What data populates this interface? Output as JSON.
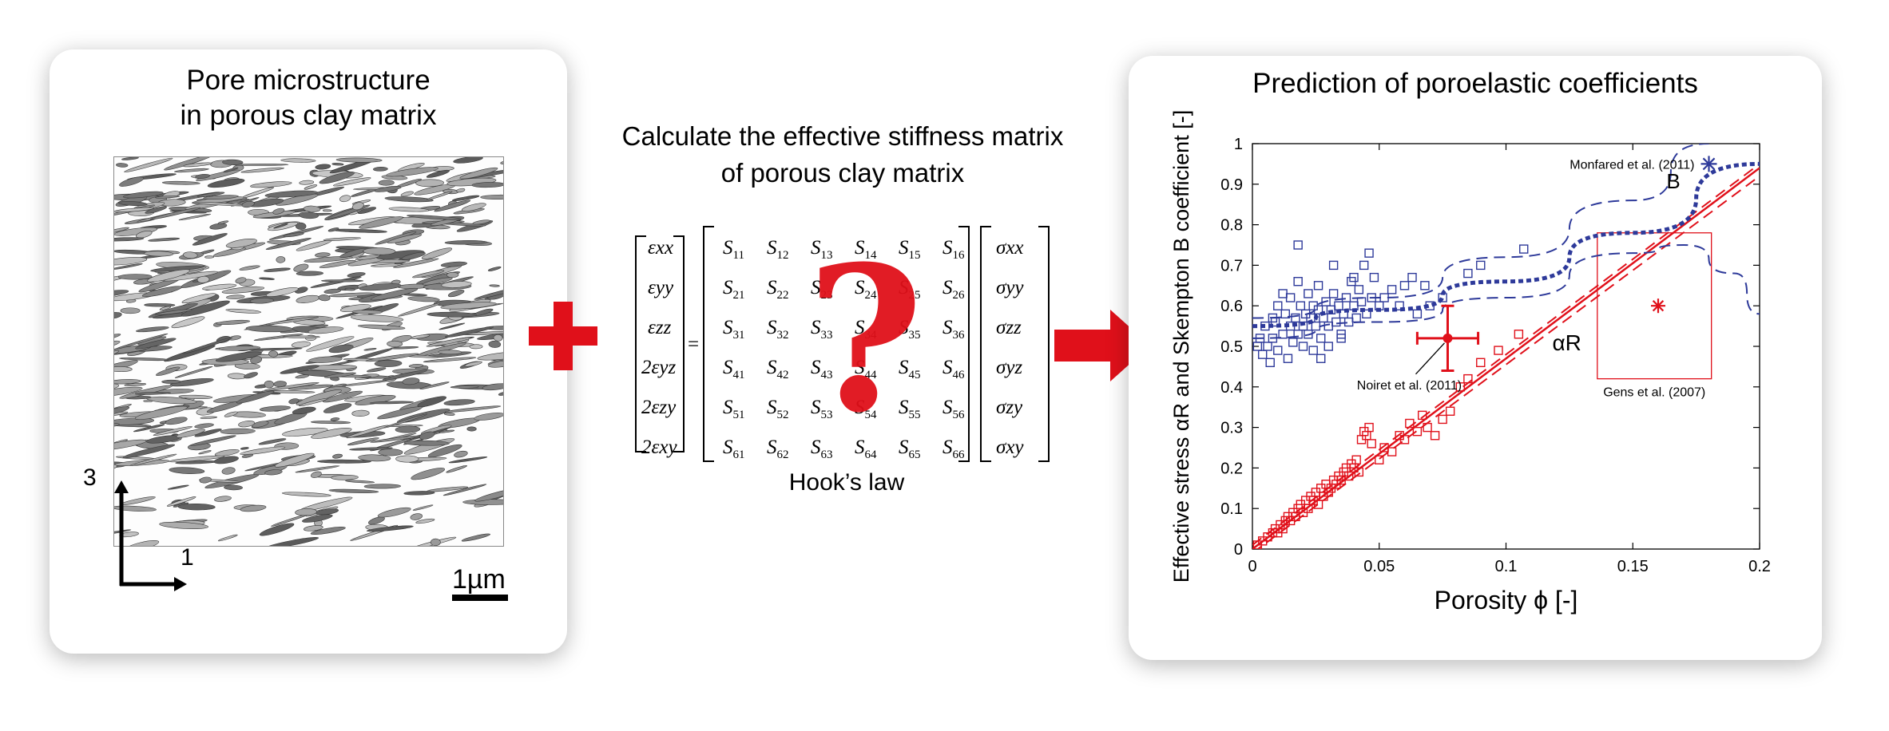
{
  "left_panel": {
    "title_line1": "Pore microstructure",
    "title_line2": "in porous clay matrix",
    "axis_vertical": "3",
    "axis_horizontal": "1",
    "scale_label": "1µm"
  },
  "middle": {
    "title_line1": "Calculate the effective stiffness matrix",
    "title_line2": "of porous clay matrix",
    "strain_labels": [
      "εxx",
      "εyy",
      "εzz",
      "2εyz",
      "2εzy",
      "2εxy"
    ],
    "stress_labels": [
      "σxx",
      "σyy",
      "σzz",
      "σyz",
      "σzy",
      "σxy"
    ],
    "equals": "=",
    "question": "?",
    "caption": "Hook’s law"
  },
  "right_panel": {
    "title": "Prediction of poroelastic coefficients",
    "annotations": {
      "monfared": "Monfared et al. (2011)",
      "noiret": "Noiret et al. (2011)",
      "gens": "Gens et al. (2007)",
      "curve_b": "B",
      "curve_alpha": "αR"
    }
  },
  "colors": {
    "red": "#e0101a",
    "blue": "#2e3a9a"
  },
  "chart_data": {
    "type": "scatter",
    "xlabel": "Porosity ϕ [-]",
    "ylabel": "Effective stress αR and Skempton B coefficient [-]",
    "xlim": [
      0,
      0.2
    ],
    "ylim": [
      0,
      1
    ],
    "xticks": [
      "0",
      "0.05",
      "0.1",
      "0.15",
      "0.2"
    ],
    "yticks": [
      "0",
      "0.1",
      "0.2",
      "0.3",
      "0.4",
      "0.5",
      "0.6",
      "0.7",
      "0.8",
      "0.9",
      "1"
    ],
    "grid": false,
    "series": [
      {
        "name": "B",
        "marker": "square",
        "color": "#2e3a9a",
        "points": [
          [
            0.002,
            0.5
          ],
          [
            0.003,
            0.52
          ],
          [
            0.004,
            0.48
          ],
          [
            0.005,
            0.55
          ],
          [
            0.006,
            0.5
          ],
          [
            0.007,
            0.46
          ],
          [
            0.008,
            0.52
          ],
          [
            0.009,
            0.56
          ],
          [
            0.01,
            0.49
          ],
          [
            0.01,
            0.6
          ],
          [
            0.012,
            0.53
          ],
          [
            0.013,
            0.58
          ],
          [
            0.014,
            0.47
          ],
          [
            0.015,
            0.55
          ],
          [
            0.015,
            0.62
          ],
          [
            0.016,
            0.51
          ],
          [
            0.017,
            0.57
          ],
          [
            0.018,
            0.53
          ],
          [
            0.018,
            0.66
          ],
          [
            0.019,
            0.6
          ],
          [
            0.02,
            0.55
          ],
          [
            0.02,
            0.5
          ],
          [
            0.021,
            0.58
          ],
          [
            0.022,
            0.63
          ],
          [
            0.022,
            0.53
          ],
          [
            0.023,
            0.57
          ],
          [
            0.024,
            0.6
          ],
          [
            0.024,
            0.49
          ],
          [
            0.025,
            0.55
          ],
          [
            0.026,
            0.59
          ],
          [
            0.026,
            0.65
          ],
          [
            0.027,
            0.52
          ],
          [
            0.028,
            0.57
          ],
          [
            0.029,
            0.61
          ],
          [
            0.03,
            0.55
          ],
          [
            0.03,
            0.5
          ],
          [
            0.031,
            0.59
          ],
          [
            0.032,
            0.63
          ],
          [
            0.033,
            0.56
          ],
          [
            0.034,
            0.6
          ],
          [
            0.035,
            0.53
          ],
          [
            0.036,
            0.58
          ],
          [
            0.037,
            0.62
          ],
          [
            0.038,
            0.56
          ],
          [
            0.039,
            0.66
          ],
          [
            0.04,
            0.6
          ],
          [
            0.041,
            0.57
          ],
          [
            0.042,
            0.64
          ],
          [
            0.043,
            0.61
          ],
          [
            0.044,
            0.7
          ],
          [
            0.045,
            0.58
          ],
          [
            0.046,
            0.73
          ],
          [
            0.047,
            0.62
          ],
          [
            0.048,
            0.67
          ],
          [
            0.05,
            0.6
          ],
          [
            0.052,
            0.62
          ],
          [
            0.055,
            0.64
          ],
          [
            0.058,
            0.6
          ],
          [
            0.06,
            0.65
          ],
          [
            0.063,
            0.67
          ],
          [
            0.065,
            0.58
          ],
          [
            0.068,
            0.65
          ],
          [
            0.07,
            0.6
          ],
          [
            0.075,
            0.62
          ],
          [
            0.085,
            0.68
          ],
          [
            0.09,
            0.7
          ],
          [
            0.107,
            0.74
          ],
          [
            0.018,
            0.75
          ],
          [
            0.012,
            0.63
          ],
          [
            0.032,
            0.7
          ],
          [
            0.04,
            0.67
          ],
          [
            0.008,
            0.57
          ],
          [
            0.027,
            0.47
          ],
          [
            0.035,
            0.52
          ]
        ]
      },
      {
        "name": "αR",
        "marker": "square",
        "color": "#e0101a",
        "points": [
          [
            0.002,
            0.01
          ],
          [
            0.004,
            0.02
          ],
          [
            0.006,
            0.03
          ],
          [
            0.008,
            0.04
          ],
          [
            0.009,
            0.05
          ],
          [
            0.01,
            0.04
          ],
          [
            0.011,
            0.06
          ],
          [
            0.012,
            0.05
          ],
          [
            0.013,
            0.07
          ],
          [
            0.014,
            0.08
          ],
          [
            0.015,
            0.07
          ],
          [
            0.016,
            0.09
          ],
          [
            0.017,
            0.08
          ],
          [
            0.018,
            0.1
          ],
          [
            0.019,
            0.11
          ],
          [
            0.02,
            0.09
          ],
          [
            0.021,
            0.12
          ],
          [
            0.022,
            0.1
          ],
          [
            0.023,
            0.13
          ],
          [
            0.024,
            0.12
          ],
          [
            0.025,
            0.14
          ],
          [
            0.026,
            0.11
          ],
          [
            0.027,
            0.15
          ],
          [
            0.028,
            0.13
          ],
          [
            0.029,
            0.16
          ],
          [
            0.03,
            0.14
          ],
          [
            0.031,
            0.15
          ],
          [
            0.032,
            0.17
          ],
          [
            0.033,
            0.16
          ],
          [
            0.034,
            0.18
          ],
          [
            0.035,
            0.17
          ],
          [
            0.036,
            0.19
          ],
          [
            0.037,
            0.2
          ],
          [
            0.038,
            0.18
          ],
          [
            0.039,
            0.21
          ],
          [
            0.04,
            0.2
          ],
          [
            0.041,
            0.22
          ],
          [
            0.042,
            0.19
          ],
          [
            0.043,
            0.27
          ],
          [
            0.044,
            0.29
          ],
          [
            0.045,
            0.28
          ],
          [
            0.046,
            0.3
          ],
          [
            0.047,
            0.26
          ],
          [
            0.05,
            0.22
          ],
          [
            0.052,
            0.25
          ],
          [
            0.055,
            0.24
          ],
          [
            0.058,
            0.28
          ],
          [
            0.06,
            0.27
          ],
          [
            0.062,
            0.31
          ],
          [
            0.065,
            0.29
          ],
          [
            0.067,
            0.33
          ],
          [
            0.069,
            0.3
          ],
          [
            0.072,
            0.28
          ],
          [
            0.075,
            0.32
          ],
          [
            0.078,
            0.34
          ],
          [
            0.082,
            0.4
          ],
          [
            0.085,
            0.42
          ],
          [
            0.09,
            0.46
          ],
          [
            0.097,
            0.49
          ],
          [
            0.105,
            0.53
          ]
        ]
      }
    ],
    "fit_lines": [
      {
        "name": "αR",
        "color": "#e0101a",
        "style": "solid",
        "x": [
          0,
          0.2
        ],
        "y": [
          0,
          0.94
        ]
      },
      {
        "name": "αR upper",
        "color": "#e0101a",
        "style": "dashed",
        "x": [
          0,
          0.2
        ],
        "y": [
          0.01,
          0.95
        ]
      },
      {
        "name": "αR lower",
        "color": "#e0101a",
        "style": "dashed",
        "x": [
          0,
          0.2
        ],
        "y": [
          -0.01,
          0.92
        ]
      },
      {
        "name": "B",
        "color": "#2e3a9a",
        "style": "dotted-thick",
        "x": [
          0,
          0.05,
          0.1,
          0.15,
          0.2
        ],
        "y": [
          0.55,
          0.59,
          0.66,
          0.78,
          0.95
        ]
      },
      {
        "name": "B upper",
        "color": "#2e3a9a",
        "style": "dashed",
        "x": [
          0,
          0.05,
          0.1,
          0.15,
          0.18
        ],
        "y": [
          0.57,
          0.62,
          0.72,
          0.86,
          1.0
        ]
      },
      {
        "name": "B lower",
        "color": "#2e3a9a",
        "style": "dashed",
        "x": [
          0,
          0.05,
          0.1,
          0.15,
          0.17,
          0.19,
          0.2
        ],
        "y": [
          0.52,
          0.56,
          0.62,
          0.73,
          0.75,
          0.68,
          0.58
        ]
      }
    ],
    "reference_points": [
      {
        "name": "Monfared et al. (2011)",
        "x": 0.18,
        "y": 0.95,
        "marker": "asterisk",
        "color": "#2e3a9a"
      },
      {
        "name": "Noiret et al. (2011)",
        "x": 0.077,
        "y": 0.52,
        "x_err": 0.012,
        "y_err": 0.08,
        "marker": "dot",
        "color": "#e0101a"
      },
      {
        "name": "Gens et al. (2007)",
        "x": 0.16,
        "y": 0.6,
        "x_range": [
          0.136,
          0.181
        ],
        "y_range": [
          0.42,
          0.78
        ],
        "marker": "asterisk",
        "color": "#e0101a"
      }
    ]
  }
}
